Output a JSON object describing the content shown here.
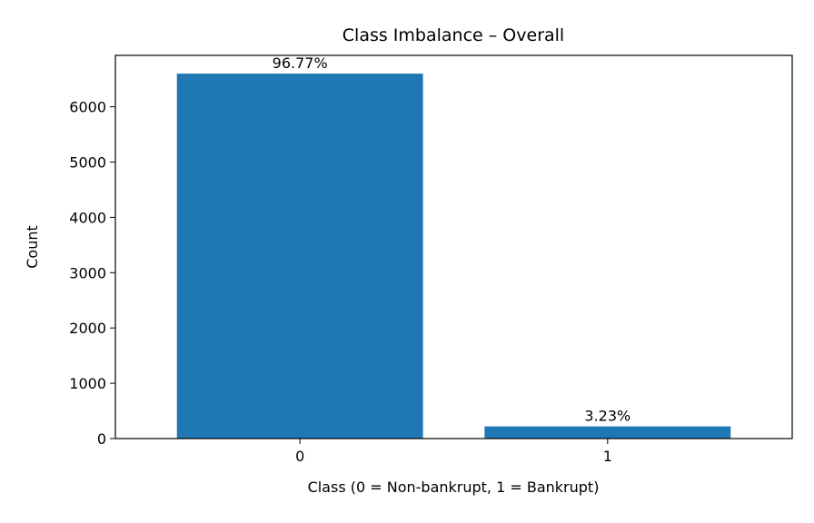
{
  "chart_data": {
    "type": "bar",
    "title": "Class Imbalance – Overall",
    "xlabel": "Class (0 = Non-bankrupt, 1 = Bankrupt)",
    "ylabel": "Count",
    "categories": [
      "0",
      "1"
    ],
    "values": [
      6599,
      220
    ],
    "data_labels": [
      "96.77%",
      "3.23%"
    ],
    "ylim": [
      0,
      6929
    ],
    "yticks": [
      0,
      1000,
      2000,
      3000,
      4000,
      5000,
      6000
    ],
    "grid": false,
    "legend": "none",
    "bar_color": "#1f77b4"
  }
}
